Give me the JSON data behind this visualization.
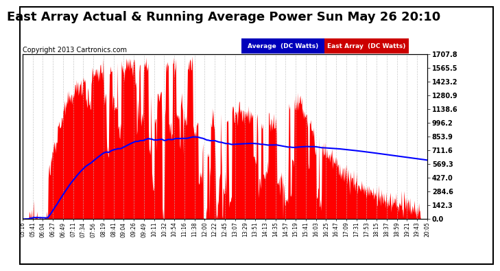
{
  "title": "East Array Actual & Running Average Power Sun May 26 20:10",
  "copyright": "Copyright 2013 Cartronics.com",
  "ylabel_right_ticks": [
    0.0,
    142.3,
    284.6,
    427.0,
    569.3,
    711.6,
    853.9,
    996.2,
    1138.6,
    1280.9,
    1423.2,
    1565.5,
    1707.8
  ],
  "ymax": 1707.8,
  "ymin": 0.0,
  "legend_labels": [
    "Average  (DC Watts)",
    "East Array  (DC Watts)"
  ],
  "legend_bg_colors": [
    "#0000bb",
    "#cc0000"
  ],
  "background_color": "#ffffff",
  "plot_bg_color": "#ffffff",
  "area_color": "#ff0000",
  "line_color": "#0000ff",
  "title_fontsize": 13,
  "copyright_fontsize": 7,
  "x_ticks": [
    "05:16",
    "05:41",
    "06:04",
    "06:27",
    "06:49",
    "07:11",
    "07:34",
    "07:56",
    "08:19",
    "08:41",
    "09:04",
    "09:26",
    "09:49",
    "10:11",
    "10:32",
    "10:54",
    "11:16",
    "11:38",
    "12:00",
    "12:22",
    "12:45",
    "13:07",
    "13:29",
    "13:51",
    "14:13",
    "14:35",
    "14:57",
    "15:19",
    "15:41",
    "16:03",
    "16:25",
    "16:47",
    "17:09",
    "17:31",
    "17:53",
    "18:15",
    "18:37",
    "18:59",
    "19:21",
    "19:43",
    "20:05"
  ]
}
